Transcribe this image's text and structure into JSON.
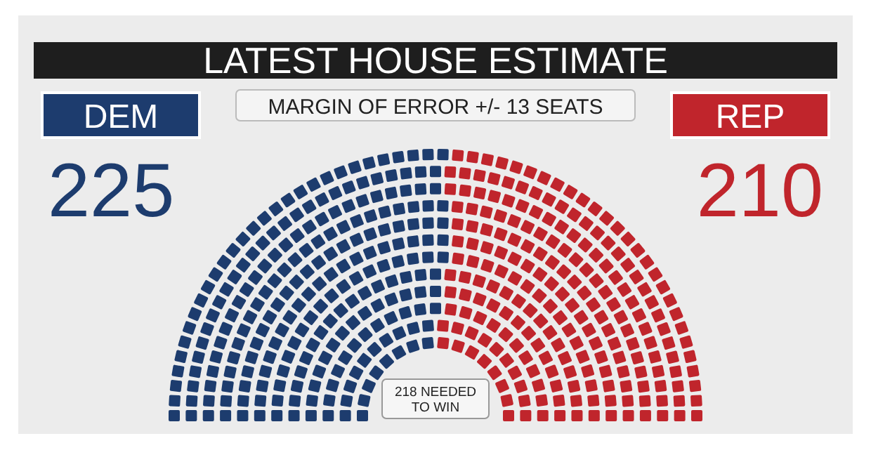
{
  "chart_data": {
    "type": "other",
    "title": "LATEST HOUSE ESTIMATE",
    "categories": [
      "DEM",
      "REP"
    ],
    "values": [
      225,
      210
    ],
    "colors": [
      "#1d3c6e",
      "#c0252c"
    ],
    "data_labels": true,
    "annotations": [
      "MARGIN OF ERROR +/- 13 SEATS",
      "218 NEEDED TO WIN"
    ]
  }
}
